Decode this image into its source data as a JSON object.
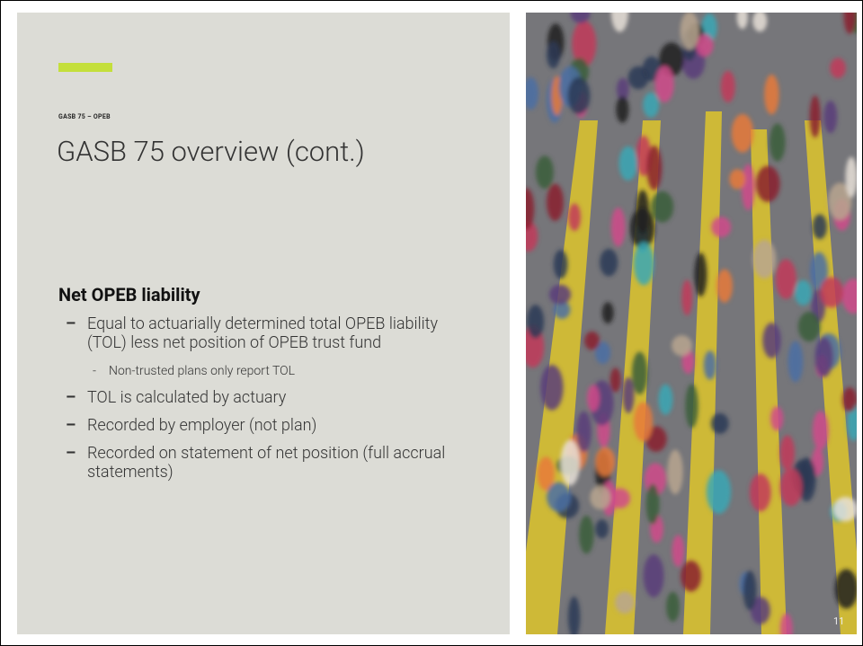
{
  "header": {
    "label": "GASB 75 – OPEB",
    "title": "GASB 75 overview (cont.)"
  },
  "section": {
    "heading": "Net OPEB liability",
    "bullets": [
      {
        "text": "Equal to actuarially determined total OPEB liability (TOL) less net position of OPEB trust fund",
        "subitems": [
          "Non-trusted plans only report TOL"
        ]
      },
      {
        "text": "TOL is calculated by actuary"
      },
      {
        "text": "Recorded by employer (not plan)"
      },
      {
        "text": "Recorded on statement of net position (full accrual statements)"
      }
    ]
  },
  "page_number": "11"
}
